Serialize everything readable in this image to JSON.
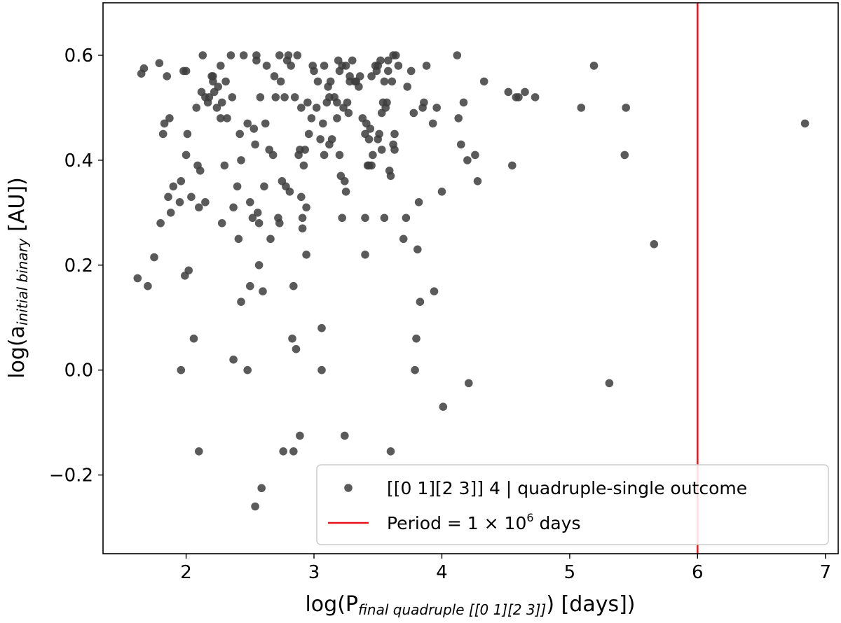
{
  "chart_data": {
    "type": "scatter",
    "xlabel": {
      "prefix": "log(P",
      "subscript": "final quadruple [[0 1][2 3]]",
      "suffix": ") [days])"
    },
    "ylabel": {
      "prefix": "log(a",
      "subscript": "initial binary",
      "suffix": " [AU])"
    },
    "xlim": [
      1.35,
      7.1
    ],
    "ylim": [
      -0.35,
      0.7
    ],
    "xticks": [
      2,
      3,
      4,
      5,
      6,
      7
    ],
    "yticks": [
      -0.2,
      0.0,
      0.2,
      0.4,
      0.6
    ],
    "ytick_labels": [
      "−0.2",
      "0.0",
      "0.2",
      "0.4",
      "0.6"
    ],
    "grid": false,
    "legend_position": "lower-right",
    "vline": {
      "x": 6,
      "color": "#e8141b",
      "label_prefix": "Period = 1 × 10",
      "label_exponent": "6",
      "label_suffix": " days"
    },
    "series": [
      {
        "name": "[[0 1][2 3]] 4 | quadruple-single outcome",
        "color": "#3d3d3d",
        "points": [
          [
            1.62,
            0.175
          ],
          [
            1.65,
            0.565
          ],
          [
            1.67,
            0.575
          ],
          [
            1.7,
            0.16
          ],
          [
            1.75,
            0.215
          ],
          [
            1.79,
            0.585
          ],
          [
            1.8,
            0.28
          ],
          [
            1.82,
            0.45
          ],
          [
            1.83,
            0.47
          ],
          [
            1.85,
            0.56
          ],
          [
            1.86,
            0.33
          ],
          [
            1.87,
            0.48
          ],
          [
            1.88,
            0.3
          ],
          [
            1.9,
            0.35
          ],
          [
            1.95,
            0.32
          ],
          [
            1.96,
            0.36
          ],
          [
            1.96,
            0.0
          ],
          [
            1.98,
            0.57
          ],
          [
            1.99,
            0.18
          ],
          [
            2.0,
            0.57
          ],
          [
            2.0,
            0.41
          ],
          [
            2.01,
            0.45
          ],
          [
            2.02,
            0.19
          ],
          [
            2.04,
            0.33
          ],
          [
            2.06,
            0.06
          ],
          [
            2.08,
            0.5
          ],
          [
            2.09,
            0.39
          ],
          [
            2.1,
            0.31
          ],
          [
            2.1,
            -0.155
          ],
          [
            2.11,
            0.38
          ],
          [
            2.12,
            0.53
          ],
          [
            2.13,
            0.6
          ],
          [
            2.15,
            0.32
          ],
          [
            2.15,
            0.52
          ],
          [
            2.17,
            0.51
          ],
          [
            2.18,
            0.52
          ],
          [
            2.2,
            0.56
          ],
          [
            2.21,
            0.56
          ],
          [
            2.21,
            0.55
          ],
          [
            2.22,
            0.53
          ],
          [
            2.24,
            0.5
          ],
          [
            2.25,
            0.54
          ],
          [
            2.27,
            0.58
          ],
          [
            2.27,
            0.48
          ],
          [
            2.28,
            0.28
          ],
          [
            2.28,
            0.51
          ],
          [
            2.3,
            0.39
          ],
          [
            2.31,
            0.55
          ],
          [
            2.32,
            0.48
          ],
          [
            2.35,
            0.6
          ],
          [
            2.36,
            0.52
          ],
          [
            2.37,
            0.31
          ],
          [
            2.37,
            0.02
          ],
          [
            2.4,
            0.35
          ],
          [
            2.41,
            0.25
          ],
          [
            2.42,
            0.45
          ],
          [
            2.43,
            0.4
          ],
          [
            2.43,
            0.13
          ],
          [
            2.45,
            0.6
          ],
          [
            2.48,
            0.47
          ],
          [
            2.48,
            0.0
          ],
          [
            2.5,
            0.16
          ],
          [
            2.5,
            0.32
          ],
          [
            2.52,
            0.29
          ],
          [
            2.53,
            0.46
          ],
          [
            2.54,
            0.43
          ],
          [
            2.54,
            -0.26
          ],
          [
            2.55,
            0.6
          ],
          [
            2.55,
            0.59
          ],
          [
            2.56,
            0.3
          ],
          [
            2.57,
            0.28
          ],
          [
            2.57,
            0.2
          ],
          [
            2.58,
            0.52
          ],
          [
            2.59,
            -0.225
          ],
          [
            2.6,
            0.15
          ],
          [
            2.61,
            0.35
          ],
          [
            2.62,
            0.47
          ],
          [
            2.63,
            0.58
          ],
          [
            2.65,
            0.42
          ],
          [
            2.66,
            0.25
          ],
          [
            2.68,
            0.41
          ],
          [
            2.69,
            0.56
          ],
          [
            2.7,
            0.52
          ],
          [
            2.72,
            0.29
          ],
          [
            2.73,
            0.28
          ],
          [
            2.73,
            0.6
          ],
          [
            2.74,
            0.55
          ],
          [
            2.75,
            0.36
          ],
          [
            2.76,
            -0.155
          ],
          [
            2.77,
            0.52
          ],
          [
            2.78,
            0.35
          ],
          [
            2.79,
            0.59
          ],
          [
            2.8,
            0.6
          ],
          [
            2.81,
            0.34
          ],
          [
            2.82,
            0.58
          ],
          [
            2.83,
            0.06
          ],
          [
            2.84,
            0.16
          ],
          [
            2.84,
            -0.155
          ],
          [
            2.85,
            0.52
          ],
          [
            2.86,
            0.04
          ],
          [
            2.87,
            0.6
          ],
          [
            2.88,
            0.41
          ],
          [
            2.89,
            0.42
          ],
          [
            2.89,
            -0.125
          ],
          [
            2.9,
            0.33
          ],
          [
            2.9,
            0.5
          ],
          [
            2.91,
            0.29
          ],
          [
            2.91,
            0.27
          ],
          [
            2.92,
            0.39
          ],
          [
            2.93,
            0.42
          ],
          [
            2.94,
            0.31
          ],
          [
            2.94,
            0.22
          ],
          [
            2.95,
            0.51
          ],
          [
            2.96,
            0.45
          ],
          [
            2.98,
            0.48
          ],
          [
            2.99,
            0.58
          ],
          [
            3.0,
            0.57
          ],
          [
            3.02,
            0.5
          ],
          [
            3.03,
            0.55
          ],
          [
            3.05,
            0.44
          ],
          [
            3.06,
            0.08
          ],
          [
            3.06,
            0.0
          ],
          [
            3.07,
            0.47
          ],
          [
            3.08,
            0.58
          ],
          [
            3.08,
            0.41
          ],
          [
            3.1,
            0.51
          ],
          [
            3.11,
            0.54
          ],
          [
            3.12,
            0.52
          ],
          [
            3.12,
            0.43
          ],
          [
            3.13,
            0.55
          ],
          [
            3.14,
            0.44
          ],
          [
            3.16,
            0.52
          ],
          [
            3.18,
            0.51
          ],
          [
            3.18,
            0.48
          ],
          [
            3.19,
            0.59
          ],
          [
            3.2,
            0.57
          ],
          [
            3.2,
            0.41
          ],
          [
            3.21,
            0.37
          ],
          [
            3.22,
            0.58
          ],
          [
            3.22,
            0.29
          ],
          [
            3.23,
            0.5
          ],
          [
            3.24,
            0.36
          ],
          [
            3.24,
            -0.125
          ],
          [
            3.25,
            0.34
          ],
          [
            3.25,
            0.58
          ],
          [
            3.26,
            0.51
          ],
          [
            3.27,
            0.49
          ],
          [
            3.28,
            0.55
          ],
          [
            3.28,
            0.56
          ],
          [
            3.3,
            0.59
          ],
          [
            3.32,
            0.55
          ],
          [
            3.33,
            0.55
          ],
          [
            3.35,
            0.54
          ],
          [
            3.36,
            0.56
          ],
          [
            3.38,
            0.48
          ],
          [
            3.4,
            0.29
          ],
          [
            3.4,
            0.22
          ],
          [
            3.4,
            0.45
          ],
          [
            3.41,
            0.47
          ],
          [
            3.42,
            0.39
          ],
          [
            3.43,
            0.39
          ],
          [
            3.43,
            0.44
          ],
          [
            3.44,
            0.46
          ],
          [
            3.45,
            0.56
          ],
          [
            3.45,
            0.39
          ],
          [
            3.46,
            0.41
          ],
          [
            3.48,
            0.58
          ],
          [
            3.49,
            0.57
          ],
          [
            3.5,
            0.58
          ],
          [
            3.5,
            0.44
          ],
          [
            3.51,
            0.45
          ],
          [
            3.52,
            0.59
          ],
          [
            3.53,
            0.42
          ],
          [
            3.53,
            0.49
          ],
          [
            3.54,
            0.51
          ],
          [
            3.55,
            0.55
          ],
          [
            3.55,
            0.29
          ],
          [
            3.56,
            0.5
          ],
          [
            3.57,
            0.51
          ],
          [
            3.58,
            0.57
          ],
          [
            3.58,
            0.59
          ],
          [
            3.59,
            0.38
          ],
          [
            3.6,
            0.37
          ],
          [
            3.6,
            -0.155
          ],
          [
            3.61,
            0.55
          ],
          [
            3.62,
            0.6
          ],
          [
            3.62,
            0.43
          ],
          [
            3.63,
            0.42
          ],
          [
            3.63,
            0.45
          ],
          [
            3.64,
            0.6
          ],
          [
            3.66,
            0.58
          ],
          [
            3.7,
            0.25
          ],
          [
            3.72,
            0.29
          ],
          [
            3.73,
            0.54
          ],
          [
            3.76,
            0.57
          ],
          [
            3.78,
            0.49
          ],
          [
            3.79,
            0.0
          ],
          [
            3.8,
            0.06
          ],
          [
            3.81,
            0.23
          ],
          [
            3.82,
            0.32
          ],
          [
            3.83,
            0.13
          ],
          [
            3.85,
            0.5
          ],
          [
            3.86,
            0.51
          ],
          [
            3.88,
            0.58
          ],
          [
            3.93,
            0.47
          ],
          [
            3.94,
            0.15
          ],
          [
            3.96,
            0.5
          ],
          [
            4.0,
            0.34
          ],
          [
            4.01,
            -0.07
          ],
          [
            4.12,
            0.6
          ],
          [
            4.13,
            0.48
          ],
          [
            4.15,
            0.43
          ],
          [
            4.17,
            0.51
          ],
          [
            4.2,
            0.4
          ],
          [
            4.21,
            -0.025
          ],
          [
            4.26,
            0.41
          ],
          [
            4.28,
            0.36
          ],
          [
            4.33,
            0.55
          ],
          [
            4.52,
            0.53
          ],
          [
            4.55,
            0.39
          ],
          [
            4.58,
            0.52
          ],
          [
            4.6,
            0.52
          ],
          [
            4.65,
            0.53
          ],
          [
            4.73,
            0.52
          ],
          [
            5.09,
            0.5
          ],
          [
            5.19,
            0.58
          ],
          [
            5.31,
            -0.025
          ],
          [
            5.43,
            0.41
          ],
          [
            5.44,
            0.5
          ],
          [
            5.66,
            0.24
          ],
          [
            6.84,
            0.47
          ]
        ]
      }
    ]
  }
}
